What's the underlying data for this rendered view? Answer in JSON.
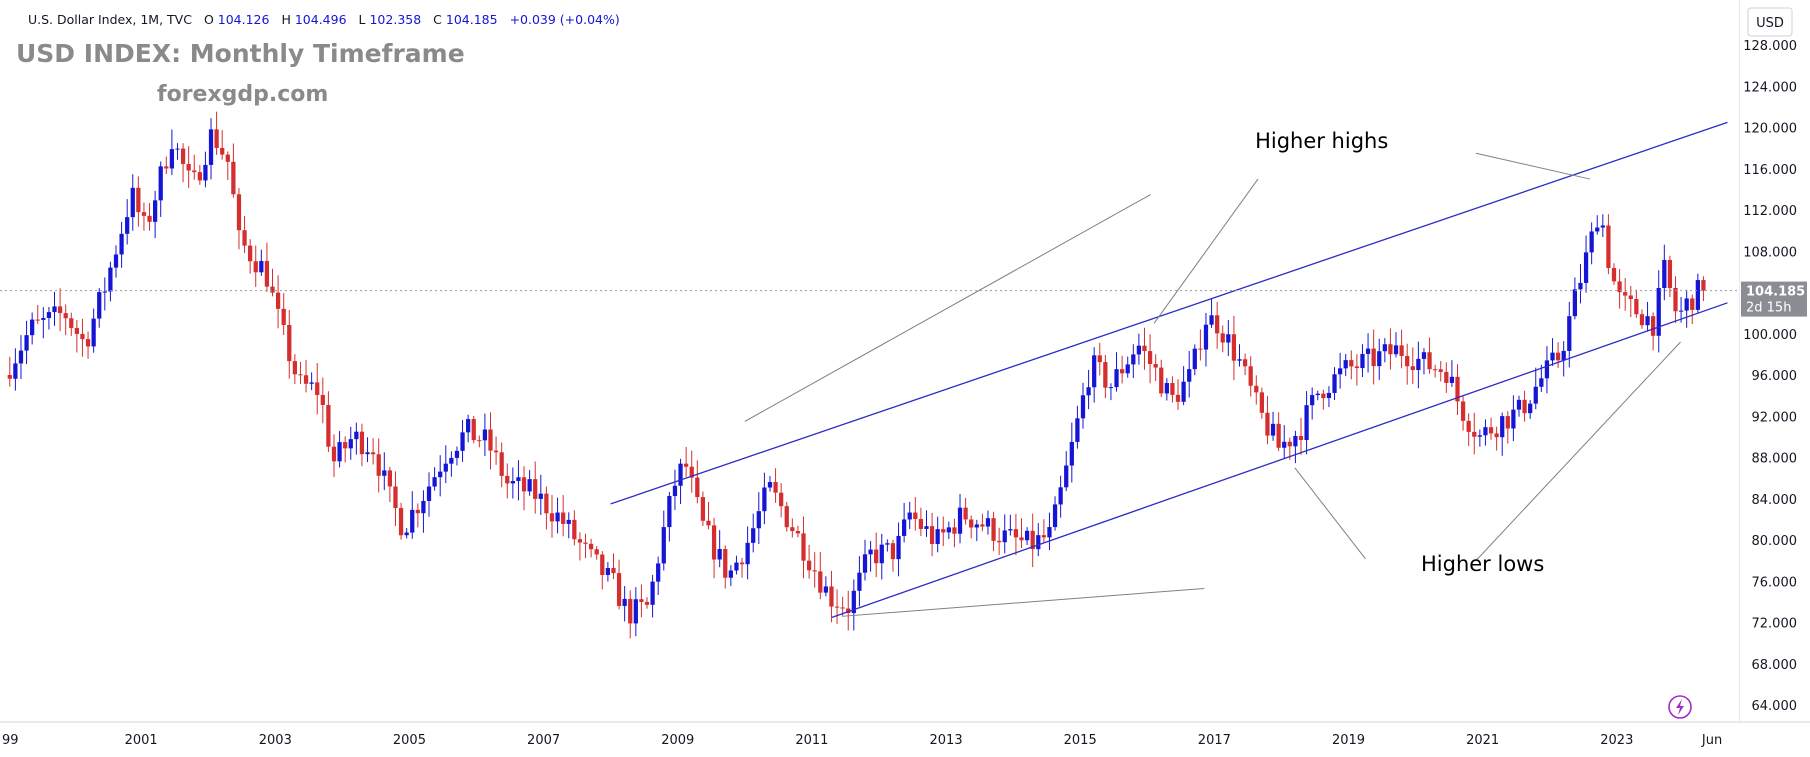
{
  "header": {
    "symbol": "U.S. Dollar Index, 1M, TVC",
    "o_label": "O",
    "o": "104.126",
    "h_label": "H",
    "h": "104.496",
    "l_label": "L",
    "l": "102.358",
    "c_label": "C",
    "c": "104.185",
    "change": "+0.039 (+0.04%)"
  },
  "overlay": {
    "title": "USD INDEX: Monthly Timeframe",
    "site": "forexgdp.com"
  },
  "currency_label": "USD",
  "price_badge": {
    "price": "104.185",
    "countdown": "2d 15h"
  },
  "colors": {
    "up": "#1515d6",
    "down": "#d42e2e",
    "channel": "#2b2bc8",
    "pointer": "#808080",
    "axis_text": "#131722",
    "badge": "#8a8d94"
  },
  "chart_data": {
    "type": "candlestick",
    "interval": "1M",
    "ylim": [
      60,
      129
    ],
    "xlim": [
      1999.0,
      2024.3
    ],
    "last_price": 104.185,
    "y_ticks": [
      "64.000",
      "68.000",
      "72.000",
      "76.000",
      "80.000",
      "84.000",
      "88.000",
      "92.000",
      "96.000",
      "100.000",
      "104.000",
      "108.000",
      "112.000",
      "116.000",
      "120.000",
      "124.000",
      "128.000"
    ],
    "x_ticks": [
      {
        "t": 1999,
        "label": "99"
      },
      {
        "t": 2001,
        "label": "2001"
      },
      {
        "t": 2003,
        "label": "2003"
      },
      {
        "t": 2005,
        "label": "2005"
      },
      {
        "t": 2007,
        "label": "2007"
      },
      {
        "t": 2009,
        "label": "2009"
      },
      {
        "t": 2011,
        "label": "2011"
      },
      {
        "t": 2013,
        "label": "2013"
      },
      {
        "t": 2015,
        "label": "2015"
      },
      {
        "t": 2017,
        "label": "2017"
      },
      {
        "t": 2019,
        "label": "2019"
      },
      {
        "t": 2021,
        "label": "2021"
      },
      {
        "t": 2023,
        "label": "2023"
      },
      {
        "t": 2024.42,
        "label": "Jun"
      }
    ],
    "price_path": [
      [
        1999.0,
        96.0
      ],
      [
        1999.4,
        100.5
      ],
      [
        1999.9,
        102.0
      ],
      [
        2000.2,
        99.0
      ],
      [
        2000.5,
        104.5
      ],
      [
        2000.9,
        113.5
      ],
      [
        2001.1,
        110.0
      ],
      [
        2001.5,
        119.0
      ],
      [
        2001.8,
        114.0
      ],
      [
        2002.1,
        119.5
      ],
      [
        2002.35,
        116.5
      ],
      [
        2002.5,
        109.0
      ],
      [
        2002.9,
        106.0
      ],
      [
        2003.1,
        101.0
      ],
      [
        2003.4,
        95.0
      ],
      [
        2003.7,
        94.5
      ],
      [
        2003.9,
        87.5
      ],
      [
        2004.2,
        90.0
      ],
      [
        2004.5,
        89.0
      ],
      [
        2004.75,
        84.0
      ],
      [
        2004.95,
        81.2
      ],
      [
        2005.3,
        85.0
      ],
      [
        2005.6,
        88.5
      ],
      [
        2005.9,
        90.5
      ],
      [
        2006.2,
        89.5
      ],
      [
        2006.5,
        85.5
      ],
      [
        2006.9,
        84.5
      ],
      [
        2007.3,
        82.0
      ],
      [
        2007.7,
        78.5
      ],
      [
        2008.1,
        75.5
      ],
      [
        2008.3,
        72.8
      ],
      [
        2008.6,
        73.5
      ],
      [
        2008.8,
        80.0
      ],
      [
        2009.0,
        85.5
      ],
      [
        2009.15,
        87.5
      ],
      [
        2009.4,
        81.5
      ],
      [
        2009.8,
        76.5
      ],
      [
        2010.1,
        80.0
      ],
      [
        2010.4,
        85.0
      ],
      [
        2010.6,
        83.0
      ],
      [
        2010.9,
        79.5
      ],
      [
        2011.3,
        74.5
      ],
      [
        2011.6,
        73.5
      ],
      [
        2011.9,
        78.5
      ],
      [
        2012.3,
        79.0
      ],
      [
        2012.5,
        82.5
      ],
      [
        2012.9,
        79.8
      ],
      [
        2013.3,
        82.5
      ],
      [
        2013.6,
        81.5
      ],
      [
        2013.9,
        80.3
      ],
      [
        2014.3,
        79.5
      ],
      [
        2014.6,
        80.5
      ],
      [
        2014.9,
        88.5
      ],
      [
        2015.2,
        97.0
      ],
      [
        2015.5,
        95.0
      ],
      [
        2015.9,
        99.0
      ],
      [
        2016.2,
        96.0
      ],
      [
        2016.4,
        93.5
      ],
      [
        2016.7,
        96.0
      ],
      [
        2016.9,
        101.5
      ],
      [
        2017.1,
        101.0
      ],
      [
        2017.4,
        97.5
      ],
      [
        2017.7,
        92.5
      ],
      [
        2018.0,
        89.0
      ],
      [
        2018.3,
        90.5
      ],
      [
        2018.6,
        94.5
      ],
      [
        2019.0,
        96.5
      ],
      [
        2019.4,
        97.5
      ],
      [
        2019.8,
        98.5
      ],
      [
        2020.2,
        97.0
      ],
      [
        2020.5,
        96.5
      ],
      [
        2020.7,
        93.0
      ],
      [
        2021.0,
        90.0
      ],
      [
        2021.3,
        91.5
      ],
      [
        2021.6,
        92.5
      ],
      [
        2021.9,
        95.5
      ],
      [
        2022.2,
        98.0
      ],
      [
        2022.4,
        103.0
      ],
      [
        2022.7,
        110.0
      ],
      [
        2022.78,
        112.5
      ],
      [
        2022.95,
        106.0
      ],
      [
        2023.1,
        103.0
      ],
      [
        2023.4,
        102.0
      ],
      [
        2023.6,
        101.0
      ],
      [
        2023.75,
        106.0
      ],
      [
        2023.95,
        101.5
      ],
      [
        2024.15,
        103.5
      ],
      [
        2024.3,
        104.185
      ]
    ],
    "trendlines": [
      {
        "name": "channel-upper",
        "from": [
          2008.0,
          83.5
        ],
        "to": [
          2024.65,
          120.5
        ]
      },
      {
        "name": "channel-lower",
        "from": [
          2011.3,
          72.5
        ],
        "to": [
          2024.65,
          103.0
        ]
      },
      {
        "name": "pointer-highs-1",
        "from": [
          2010.0,
          91.5
        ],
        "to": [
          2016.05,
          113.5
        ]
      },
      {
        "name": "pointer-highs-2",
        "from": [
          2016.1,
          101.0
        ],
        "to": [
          2017.65,
          115.0
        ]
      },
      {
        "name": "pointer-highs-3",
        "from": [
          2020.9,
          117.5
        ],
        "to": [
          2022.6,
          115.0
        ]
      },
      {
        "name": "pointer-lows-1",
        "from": [
          2011.45,
          72.6
        ],
        "to": [
          2016.85,
          75.3
        ]
      },
      {
        "name": "pointer-lows-2",
        "from": [
          2018.2,
          87.0
        ],
        "to": [
          2019.25,
          78.2
        ]
      },
      {
        "name": "pointer-lows-3",
        "from": [
          2020.9,
          78.0
        ],
        "to": [
          2023.95,
          99.2
        ]
      }
    ],
    "annotations": [
      {
        "text": "Higher highs",
        "at": [
          2018.6,
          118.0
        ]
      },
      {
        "text": "Higher lows",
        "at": [
          2021.0,
          77.0
        ]
      }
    ]
  }
}
